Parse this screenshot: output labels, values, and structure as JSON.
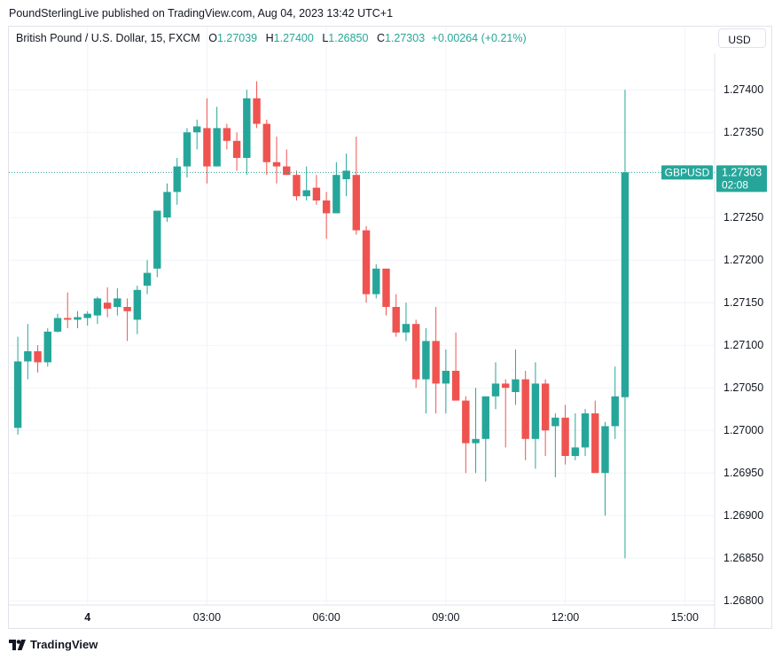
{
  "publish_line": "PoundSterlingLive published on TradingView.com, Aug 04, 2023 13:42 UTC+1",
  "legend": {
    "symbol": "British Pound / U.S. Dollar, 15, FXCM",
    "o_label": "O",
    "o_value": "1.27039",
    "h_label": "H",
    "h_value": "1.27400",
    "l_label": "L",
    "l_value": "1.26850",
    "c_label": "C",
    "c_value": "1.27303",
    "change": "+0.00264 (+0.21%)"
  },
  "currency_button": "USD",
  "footer": {
    "brand": "TradingView"
  },
  "colors": {
    "up": "#26a69a",
    "down": "#ef5350",
    "grid": "#f0f3fa",
    "text": "#131722"
  },
  "chart_data": {
    "type": "candlestick",
    "interval": "15",
    "y_ticks": [
      "1.27400",
      "1.27350",
      "1.27250",
      "1.27200",
      "1.27150",
      "1.27100",
      "1.27050",
      "1.27000",
      "1.26950",
      "1.26900",
      "1.26850",
      "1.26800"
    ],
    "ylim": [
      1.26795,
      1.27445
    ],
    "x_ticks": [
      {
        "label": "4",
        "bar": 7,
        "bold": true
      },
      {
        "label": "03:00",
        "bar": 19
      },
      {
        "label": "06:00",
        "bar": 31
      },
      {
        "label": "09:00",
        "bar": 43
      },
      {
        "label": "12:00",
        "bar": 55
      },
      {
        "label": "15:00",
        "bar": 67
      }
    ],
    "x_bar_range": [
      -0.9,
      70.0
    ],
    "last_price": {
      "label": "GBPUSD",
      "value": "1.27303",
      "countdown": "02:08"
    },
    "candles": [
      {
        "i": 0,
        "o": 1.27003,
        "h": 1.2711,
        "l": 1.26995,
        "c": 1.27081
      },
      {
        "i": 1,
        "o": 1.27081,
        "h": 1.27125,
        "l": 1.2706,
        "c": 1.27093
      },
      {
        "i": 2,
        "o": 1.27093,
        "h": 1.271,
        "l": 1.27068,
        "c": 1.2708
      },
      {
        "i": 3,
        "o": 1.2708,
        "h": 1.2712,
        "l": 1.27075,
        "c": 1.27116
      },
      {
        "i": 4,
        "o": 1.27116,
        "h": 1.27137,
        "l": 1.27115,
        "c": 1.27132
      },
      {
        "i": 5,
        "o": 1.27132,
        "h": 1.27162,
        "l": 1.2712,
        "c": 1.2713
      },
      {
        "i": 6,
        "o": 1.2713,
        "h": 1.2714,
        "l": 1.2712,
        "c": 1.27133
      },
      {
        "i": 7,
        "o": 1.27132,
        "h": 1.2714,
        "l": 1.27123,
        "c": 1.27137
      },
      {
        "i": 8,
        "o": 1.27135,
        "h": 1.27157,
        "l": 1.27125,
        "c": 1.27155
      },
      {
        "i": 9,
        "o": 1.2715,
        "h": 1.27168,
        "l": 1.27133,
        "c": 1.27143
      },
      {
        "i": 10,
        "o": 1.27145,
        "h": 1.27167,
        "l": 1.27135,
        "c": 1.27155
      },
      {
        "i": 11,
        "o": 1.27145,
        "h": 1.27155,
        "l": 1.27105,
        "c": 1.2714
      },
      {
        "i": 12,
        "o": 1.2713,
        "h": 1.2717,
        "l": 1.27113,
        "c": 1.27165
      },
      {
        "i": 13,
        "o": 1.2717,
        "h": 1.272,
        "l": 1.2716,
        "c": 1.27185
      },
      {
        "i": 14,
        "o": 1.2719,
        "h": 1.27255,
        "l": 1.2718,
        "c": 1.27258
      },
      {
        "i": 15,
        "o": 1.2725,
        "h": 1.2729,
        "l": 1.27245,
        "c": 1.2728
      },
      {
        "i": 16,
        "o": 1.2728,
        "h": 1.2732,
        "l": 1.27265,
        "c": 1.2731
      },
      {
        "i": 17,
        "o": 1.2731,
        "h": 1.27355,
        "l": 1.27297,
        "c": 1.2735
      },
      {
        "i": 18,
        "o": 1.2735,
        "h": 1.27365,
        "l": 1.2733,
        "c": 1.27357
      },
      {
        "i": 19,
        "o": 1.27355,
        "h": 1.2739,
        "l": 1.2729,
        "c": 1.2731
      },
      {
        "i": 20,
        "o": 1.2731,
        "h": 1.2738,
        "l": 1.2731,
        "c": 1.27355
      },
      {
        "i": 21,
        "o": 1.27355,
        "h": 1.2736,
        "l": 1.2733,
        "c": 1.2734
      },
      {
        "i": 22,
        "o": 1.2734,
        "h": 1.2735,
        "l": 1.27305,
        "c": 1.2732
      },
      {
        "i": 23,
        "o": 1.2732,
        "h": 1.274,
        "l": 1.273,
        "c": 1.2739
      },
      {
        "i": 24,
        "o": 1.2739,
        "h": 1.2741,
        "l": 1.27355,
        "c": 1.2736
      },
      {
        "i": 25,
        "o": 1.2736,
        "h": 1.27365,
        "l": 1.273,
        "c": 1.27315
      },
      {
        "i": 26,
        "o": 1.27315,
        "h": 1.27345,
        "l": 1.2729,
        "c": 1.2731
      },
      {
        "i": 27,
        "o": 1.2731,
        "h": 1.2733,
        "l": 1.273,
        "c": 1.273
      },
      {
        "i": 28,
        "o": 1.273,
        "h": 1.27305,
        "l": 1.2727,
        "c": 1.27275
      },
      {
        "i": 29,
        "o": 1.27275,
        "h": 1.2731,
        "l": 1.2727,
        "c": 1.27282
      },
      {
        "i": 30,
        "o": 1.27285,
        "h": 1.273,
        "l": 1.27265,
        "c": 1.2727
      },
      {
        "i": 31,
        "o": 1.2727,
        "h": 1.2728,
        "l": 1.27225,
        "c": 1.27255
      },
      {
        "i": 32,
        "o": 1.27255,
        "h": 1.27315,
        "l": 1.27255,
        "c": 1.273
      },
      {
        "i": 33,
        "o": 1.27295,
        "h": 1.27325,
        "l": 1.27275,
        "c": 1.27305
      },
      {
        "i": 34,
        "o": 1.273,
        "h": 1.27345,
        "l": 1.2723,
        "c": 1.27235
      },
      {
        "i": 35,
        "o": 1.27235,
        "h": 1.2724,
        "l": 1.2715,
        "c": 1.2716
      },
      {
        "i": 36,
        "o": 1.2716,
        "h": 1.27195,
        "l": 1.27155,
        "c": 1.2719
      },
      {
        "i": 37,
        "o": 1.2719,
        "h": 1.2719,
        "l": 1.27135,
        "c": 1.27145
      },
      {
        "i": 38,
        "o": 1.27145,
        "h": 1.2716,
        "l": 1.2711,
        "c": 1.27115
      },
      {
        "i": 39,
        "o": 1.27115,
        "h": 1.2715,
        "l": 1.27105,
        "c": 1.27125
      },
      {
        "i": 40,
        "o": 1.27125,
        "h": 1.2713,
        "l": 1.2705,
        "c": 1.2706
      },
      {
        "i": 41,
        "o": 1.2706,
        "h": 1.2712,
        "l": 1.2702,
        "c": 1.27105
      },
      {
        "i": 42,
        "o": 1.27105,
        "h": 1.27145,
        "l": 1.2702,
        "c": 1.27055
      },
      {
        "i": 43,
        "o": 1.27055,
        "h": 1.27095,
        "l": 1.2702,
        "c": 1.2707
      },
      {
        "i": 44,
        "o": 1.2707,
        "h": 1.27115,
        "l": 1.2704,
        "c": 1.27035
      },
      {
        "i": 45,
        "o": 1.27035,
        "h": 1.2704,
        "l": 1.2695,
        "c": 1.26985
      },
      {
        "i": 46,
        "o": 1.26985,
        "h": 1.2705,
        "l": 1.2695,
        "c": 1.2699
      },
      {
        "i": 47,
        "o": 1.2699,
        "h": 1.2704,
        "l": 1.2694,
        "c": 1.2704
      },
      {
        "i": 48,
        "o": 1.2704,
        "h": 1.2708,
        "l": 1.27025,
        "c": 1.27055
      },
      {
        "i": 49,
        "o": 1.27055,
        "h": 1.2706,
        "l": 1.2698,
        "c": 1.2705
      },
      {
        "i": 50,
        "o": 1.27045,
        "h": 1.27095,
        "l": 1.2703,
        "c": 1.2706
      },
      {
        "i": 51,
        "o": 1.2706,
        "h": 1.2707,
        "l": 1.26965,
        "c": 1.2699
      },
      {
        "i": 52,
        "o": 1.2699,
        "h": 1.2708,
        "l": 1.26955,
        "c": 1.27055
      },
      {
        "i": 53,
        "o": 1.27055,
        "h": 1.2706,
        "l": 1.2697,
        "c": 1.27
      },
      {
        "i": 54,
        "o": 1.27005,
        "h": 1.2702,
        "l": 1.26945,
        "c": 1.27015
      },
      {
        "i": 55,
        "o": 1.27015,
        "h": 1.2703,
        "l": 1.2696,
        "c": 1.2697
      },
      {
        "i": 56,
        "o": 1.2697,
        "h": 1.2702,
        "l": 1.26965,
        "c": 1.2698
      },
      {
        "i": 57,
        "o": 1.2698,
        "h": 1.27025,
        "l": 1.2697,
        "c": 1.2702
      },
      {
        "i": 58,
        "o": 1.2702,
        "h": 1.27035,
        "l": 1.2695,
        "c": 1.2695
      },
      {
        "i": 59,
        "o": 1.2695,
        "h": 1.2701,
        "l": 1.269,
        "c": 1.27005
      },
      {
        "i": 60,
        "o": 1.27005,
        "h": 1.27075,
        "l": 1.2699,
        "c": 1.2704
      },
      {
        "i": 61,
        "o": 1.27039,
        "h": 1.274,
        "l": 1.2685,
        "c": 1.27303
      }
    ]
  }
}
